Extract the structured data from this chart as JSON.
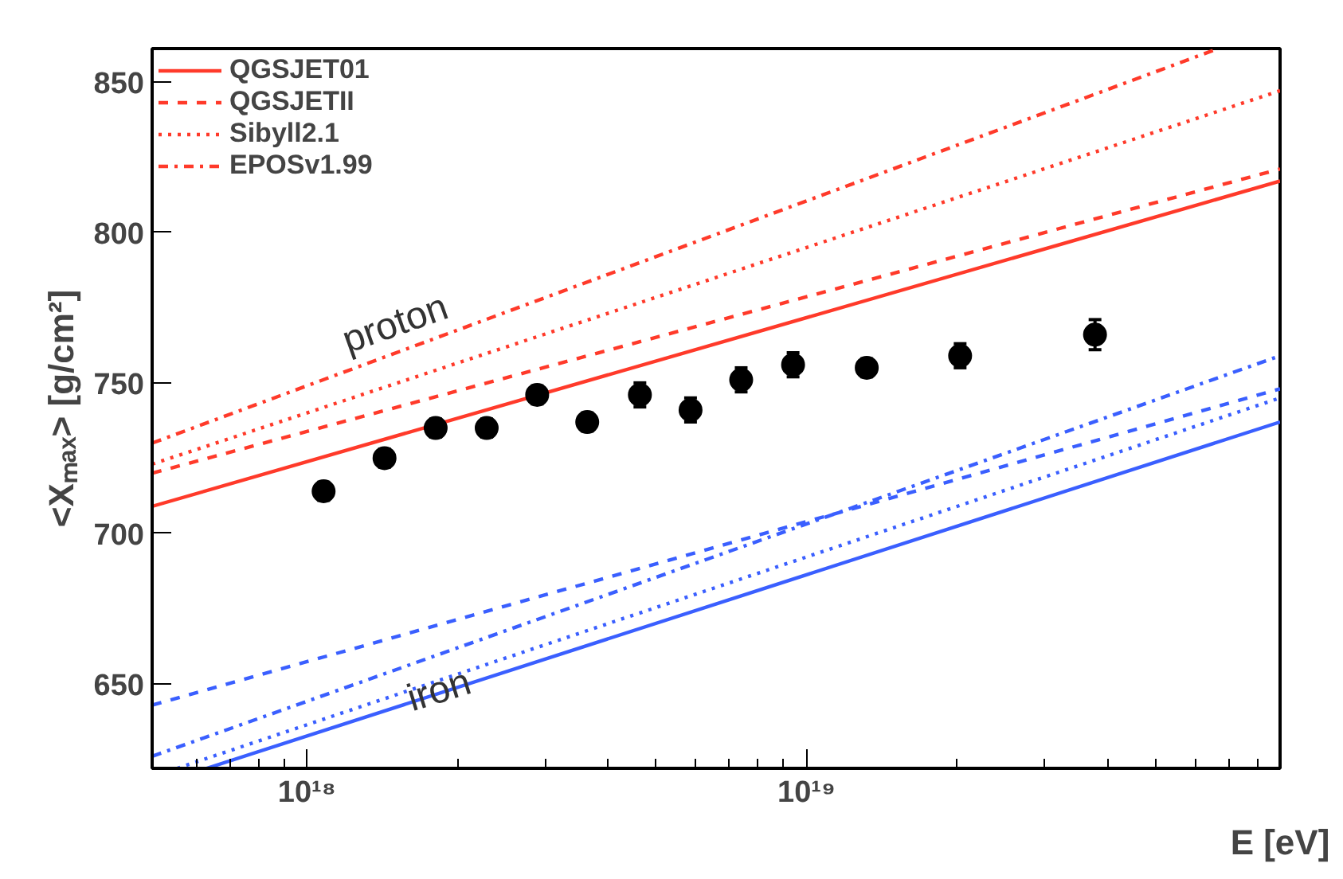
{
  "chart_data": {
    "type": "line",
    "xlabel": "E [eV]",
    "ylabel": "<Xₘₐₓ> [g/cm²]",
    "log": "x",
    "grid": false,
    "legend": "top left",
    "xlim": [
      4.9e+17,
      8.87e+19
    ],
    "ylim": [
      622,
      861
    ],
    "xticks": [
      {
        "value": 6e+17,
        "label": null
      },
      {
        "value": 7e+17,
        "label": null
      },
      {
        "value": 8e+17,
        "label": null
      },
      {
        "value": 9e+17,
        "label": null
      },
      {
        "value": 1e+18,
        "label": "10¹⁸"
      },
      {
        "value": 2e+18,
        "label": null
      },
      {
        "value": 3e+18,
        "label": null
      },
      {
        "value": 4e+18,
        "label": null
      },
      {
        "value": 5e+18,
        "label": null
      },
      {
        "value": 6e+18,
        "label": null
      },
      {
        "value": 7e+18,
        "label": null
      },
      {
        "value": 8e+18,
        "label": null
      },
      {
        "value": 9e+18,
        "label": null
      },
      {
        "value": 1e+19,
        "label": "10¹⁹"
      },
      {
        "value": 2e+19,
        "label": null
      },
      {
        "value": 3e+19,
        "label": null
      },
      {
        "value": 4e+19,
        "label": null
      },
      {
        "value": 5e+19,
        "label": null
      },
      {
        "value": 6e+19,
        "label": null
      },
      {
        "value": 7e+19,
        "label": null
      },
      {
        "value": 8e+19,
        "label": null
      }
    ],
    "yticks": [
      650,
      700,
      750,
      800,
      850
    ],
    "series": [
      {
        "name": "QGSJET01",
        "line_style": "solid",
        "color": "#ff3a2a",
        "x": [
          4.9e+17,
          8.87e+19
        ],
        "values": [
          709,
          817
        ]
      },
      {
        "name": "QGSJETII",
        "line_style": "dashed",
        "color": "#ff3a2a",
        "x": [
          4.9e+17,
          8.87e+19
        ],
        "values": [
          720,
          821
        ]
      },
      {
        "name": "Sibyll2.1",
        "line_style": "dotted",
        "color": "#ff3a2a",
        "x": [
          4.9e+17,
          8.87e+19
        ],
        "values": [
          723,
          847
        ]
      },
      {
        "name": "EPOSv1.99",
        "line_style": "dashdot",
        "color": "#ff3a2a",
        "x": [
          4.9e+17,
          6.67e+19
        ],
        "values": [
          730,
          861
        ]
      },
      {
        "line_style": "solid",
        "color": "#3a5fff",
        "x": [
          6.3e+17,
          8.87e+19
        ],
        "values": [
          622,
          737
        ]
      },
      {
        "line_style": "dashed",
        "color": "#3a5fff",
        "x": [
          4.9e+17,
          8.87e+19
        ],
        "values": [
          643,
          748
        ]
      },
      {
        "line_style": "dotted",
        "color": "#3a5fff",
        "x": [
          5.5e+17,
          8.87e+19
        ],
        "values": [
          622,
          745
        ]
      },
      {
        "line_style": "dashdot",
        "color": "#3a5fff",
        "x": [
          4.9e+17,
          8.87e+19
        ],
        "values": [
          626,
          759
        ]
      },
      {
        "type": "scatter",
        "marker": "circle",
        "color": "#000000",
        "x": [
          1.08e+18,
          1.43e+18,
          1.81e+18,
          2.29e+18,
          2.89e+18,
          3.64e+18,
          4.64e+18,
          5.86e+18,
          7.4e+18,
          9.4e+18,
          1.32e+19,
          2.03e+19,
          3.78e+19
        ],
        "values": [
          714,
          725,
          735,
          735,
          746,
          737,
          746,
          741,
          751,
          756,
          755,
          759,
          766
        ],
        "errors": [
          3,
          3,
          3,
          3,
          3,
          3,
          4,
          4,
          4,
          4,
          3,
          4,
          5
        ]
      }
    ],
    "annotations": [
      "proton",
      "iron"
    ]
  }
}
